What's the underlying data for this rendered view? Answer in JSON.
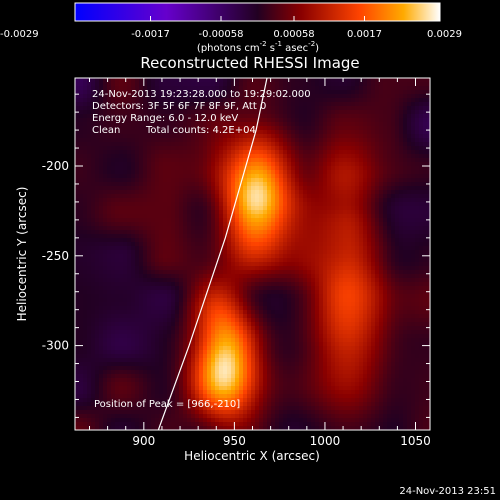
{
  "chart_data": {
    "type": "heatmap",
    "title": "Reconstructed RHESSI Image",
    "xlabel": "Heliocentric X (arcsec)",
    "ylabel": "Heliocentric Y (arcsec)",
    "xlim": [
      862,
      1058
    ],
    "ylim": [
      -347,
      -151
    ],
    "x_ticks": [
      900,
      950,
      1000,
      1050
    ],
    "y_ticks": [
      -200,
      -250,
      -300
    ],
    "colorbar": {
      "min": -0.0029,
      "max": 0.0029,
      "ticks": [
        "-0.0029",
        "-0.0017",
        "-0.00058",
        "0.00058",
        "0.0017",
        "0.0029"
      ],
      "unit_main": "(photons cm",
      "unit_exp1": "-2",
      "unit_mid1": " s",
      "unit_exp2": "-1",
      "unit_mid2": " asec",
      "unit_exp3": "-2",
      "unit_end": ")"
    },
    "annotations": {
      "time_range": "24-Nov-2013 19:23:28.000 to 19:29:02.000",
      "detectors": "Detectors: 3F 5F 6F 7F 8F 9F, Att 0",
      "energy": "Energy Range: 6.0 - 12.0 keV",
      "clean_label": "Clean",
      "total_counts": "Total counts: 4.2E+04",
      "peak": "Position of Peak = [966,-210]"
    },
    "sources": [
      {
        "x": 962,
        "y": -215,
        "peak": 0.0029
      },
      {
        "x": 945,
        "y": -308,
        "peak": 0.0027
      },
      {
        "x": 1012,
        "y": -268,
        "peak": 0.0017
      }
    ],
    "limb_line": [
      [
        908,
        -347
      ],
      [
        925,
        -300
      ],
      [
        945,
        -240
      ],
      [
        962,
        -180
      ],
      [
        968,
        -151
      ]
    ]
  },
  "footer": {
    "timestamp": "24-Nov-2013 23:51"
  },
  "colors": {
    "background": "#000000",
    "foreground": "#ffffff"
  }
}
